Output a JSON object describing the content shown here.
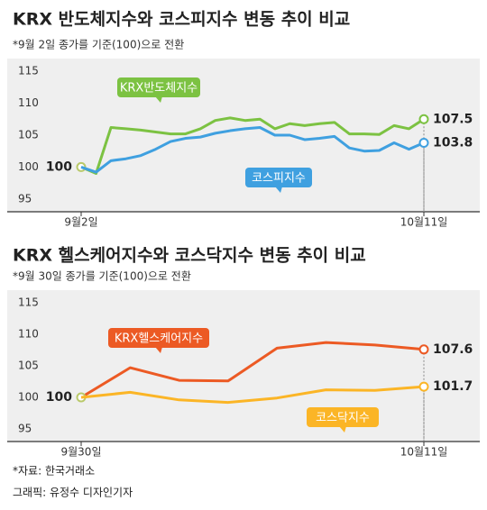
{
  "chart_data": [
    {
      "type": "line",
      "title": "KRX 반도체지수와 코스피지수 변동 추이 비교",
      "subtitle": "*9월 2일 종가를 기준(100)으로 전환",
      "categories": [
        "9월2일",
        null,
        null,
        null,
        null,
        null,
        null,
        null,
        null,
        null,
        null,
        null,
        null,
        null,
        null,
        null,
        null,
        null,
        null,
        null,
        null,
        null,
        null,
        "10월11일"
      ],
      "series": [
        {
          "name": "KRX반도체지수",
          "color": "#7cc242",
          "values": [
            100,
            99,
            106.2,
            106,
            105.8,
            105.5,
            105.2,
            105.2,
            106,
            107.3,
            107.7,
            107.3,
            107.5,
            106,
            106.8,
            106.5,
            106.8,
            107,
            105.2,
            105.2,
            105.1,
            106.5,
            106,
            107.5
          ]
        },
        {
          "name": "코스피지수",
          "color": "#3fa0e0",
          "values": [
            100,
            99.2,
            101,
            101.3,
            101.8,
            102.8,
            104,
            104.5,
            104.7,
            105.3,
            105.7,
            106,
            106.2,
            105,
            105,
            104.3,
            104.5,
            104.8,
            103,
            102.5,
            102.6,
            103.8,
            102.8,
            103.8
          ]
        }
      ],
      "ylim": [
        93,
        117
      ],
      "yticks": [
        95,
        100,
        105,
        110,
        115
      ],
      "grid": false
    },
    {
      "type": "line",
      "title": "KRX 헬스케어지수와 코스닥지수 변동 추이 비교",
      "subtitle": "*9월 30일 종가를 기준(100)으로 전환",
      "categories": [
        "9월30일",
        null,
        null,
        null,
        null,
        null,
        null,
        "10월11일"
      ],
      "series": [
        {
          "name": "KRX헬스케어지수",
          "color": "#ec5a24",
          "values": [
            100,
            104.7,
            102.7,
            102.6,
            107.8,
            108.7,
            108.3,
            107.6
          ]
        },
        {
          "name": "코스닥지수",
          "color": "#fbb526",
          "values": [
            100,
            100.8,
            99.6,
            99.2,
            99.9,
            101.2,
            101.1,
            101.7
          ]
        }
      ],
      "ylim": [
        93,
        117
      ],
      "yticks": [
        95,
        100,
        105,
        110,
        115
      ],
      "grid": false
    }
  ],
  "footer": {
    "source": "*자료: 한국거래소",
    "credit": "그래픽: 유정수 디자인기자"
  }
}
